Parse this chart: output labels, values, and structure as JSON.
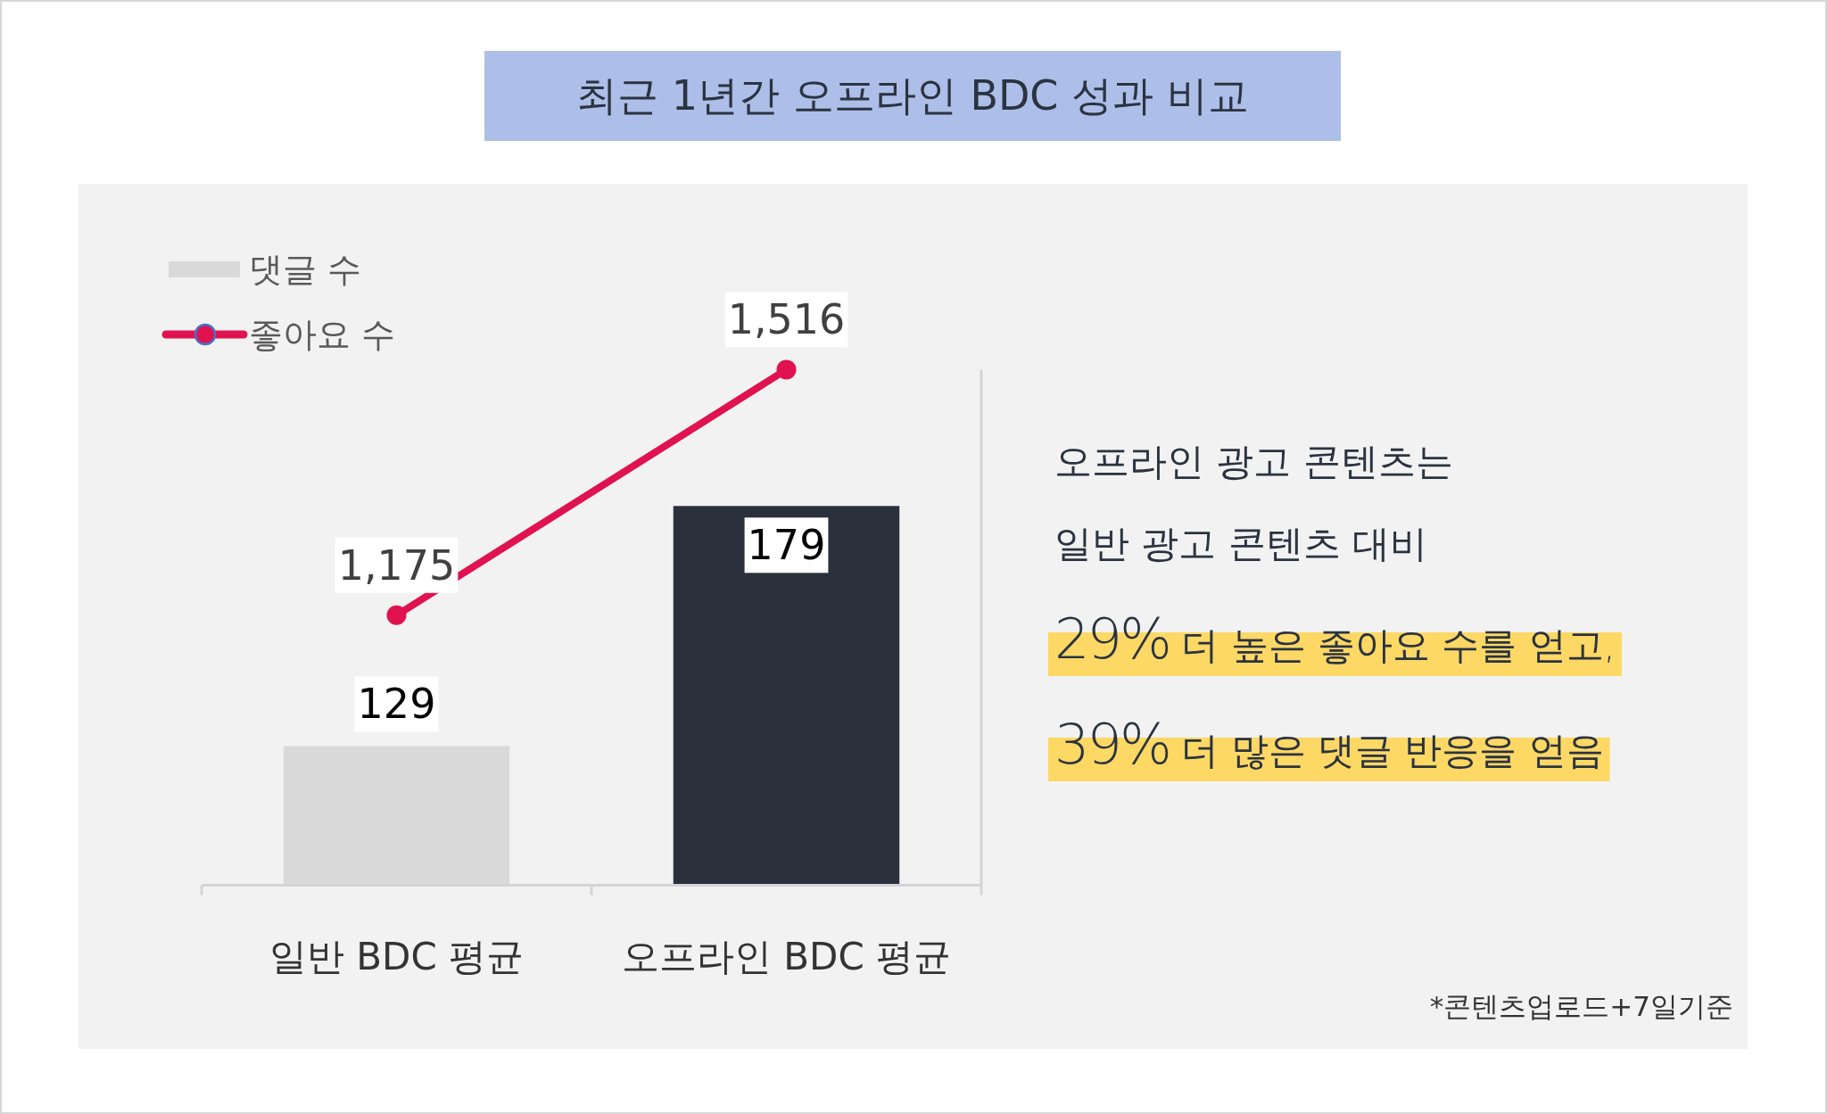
{
  "chart_data": {
    "type": "bar",
    "title": "최근 1년간 오프라인 BDC 성과 비교",
    "categories": [
      "일반 BDC 평균",
      "오프라인 BDC 평균"
    ],
    "series": [
      {
        "name": "댓글 수",
        "color": "#d9d9d9",
        "colors": [
          "#d9d9d9",
          "#2a313c"
        ],
        "values": [
          129,
          179
        ]
      },
      {
        "name": "좋아요 수",
        "type": "line",
        "axis": "y2",
        "color": "#e0124f",
        "marker": "circle",
        "values": [
          1175,
          1516
        ],
        "value_labels": [
          "1,175",
          "1,516"
        ]
      }
    ],
    "ylim": [
      100,
      179
    ],
    "y2lim": [
      800,
      1516
    ],
    "data_labels": true,
    "legend": "top left",
    "tick_labels": "x",
    "annotations": [
      "오프라인 광고 콘텐츠는",
      "일반 광고 콘텐츠 대비",
      "29% 더 높은 좋아요 수를 얻고,",
      "39% 더 많은 댓글 반응을 얻음",
      "*콘텐츠업로드+7일기준"
    ]
  }
}
